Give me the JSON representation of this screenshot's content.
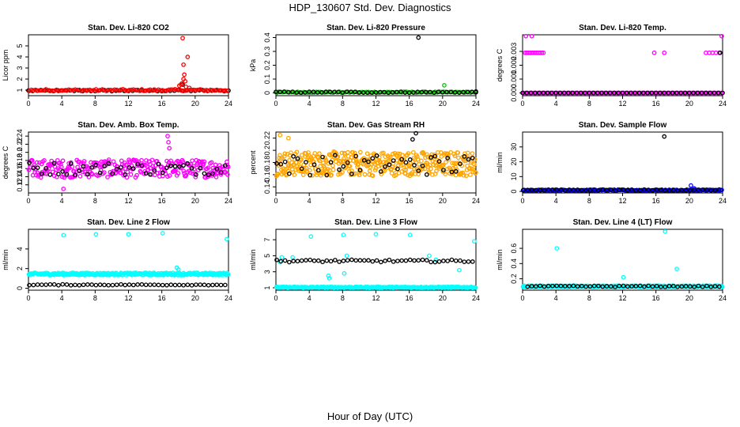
{
  "page": {
    "title": "HDP_130607  Std. Dev. Diagnostics",
    "xlabel": "Hour of Day (UTC)"
  },
  "colors": {
    "black": "#000000",
    "red": "#ff0000",
    "green": "#00cc00",
    "magenta": "#ff00ff",
    "orange": "#ffa500",
    "blue": "#0000ff",
    "cyan": "#00ffff"
  },
  "chart_data": [
    {
      "type": "scatter",
      "title": "Stan. Dev. Li-820 CO2",
      "ylabel": "Licor ppm",
      "xlim": [
        0,
        24
      ],
      "ylim": [
        0.5,
        6
      ],
      "xticks": [
        0,
        4,
        8,
        12,
        16,
        20,
        24
      ],
      "yticks": [
        1,
        2,
        3,
        4,
        5
      ],
      "series": [
        {
          "name": "black",
          "color": "#000000",
          "base": 0.95,
          "noise": 0.06,
          "step": 0.5,
          "offset": 0,
          "points": [
            [
              18.5,
              1.5
            ]
          ]
        },
        {
          "name": "red",
          "color": "#ff0000",
          "base": 1.0,
          "noise": 0.08,
          "step": 0.25,
          "offset": 0.1,
          "points": [
            [
              18.5,
              5.7
            ],
            [
              18.6,
              2.0
            ],
            [
              18.4,
              1.6
            ],
            [
              18.7,
              2.4
            ],
            [
              18.8,
              1.8
            ],
            [
              19.1,
              4.0
            ],
            [
              18.3,
              1.5
            ],
            [
              18.9,
              1.3
            ],
            [
              19.3,
              1.2
            ],
            [
              18.6,
              3.3
            ],
            [
              18.1,
              1.4
            ]
          ]
        }
      ]
    },
    {
      "type": "scatter",
      "title": "Stan. Dev. Li-820 Pressure",
      "ylabel": "kPa",
      "xlim": [
        0,
        24
      ],
      "ylim": [
        -0.02,
        0.42
      ],
      "xticks": [
        0,
        4,
        8,
        12,
        16,
        20,
        24
      ],
      "yticks": [
        0.0,
        0.1,
        0.2,
        0.3,
        0.4
      ],
      "series": [
        {
          "name": "green",
          "color": "#00cc00",
          "base": 0.005,
          "noise": 0.004,
          "step": 0.25,
          "offset": 0.1,
          "points": [
            [
              20.2,
              0.055
            ],
            [
              0.1,
              0.0
            ]
          ]
        },
        {
          "name": "black",
          "color": "#000000",
          "base": 0.005,
          "noise": 0.004,
          "step": 0.5,
          "offset": 0,
          "points": [
            [
              17.1,
              0.4
            ],
            [
              24,
              0.01
            ]
          ]
        }
      ]
    },
    {
      "type": "scatter",
      "title": "Stan. Dev. Li-820 Temp.",
      "ylabel": "degrees C",
      "xlim": [
        0,
        24
      ],
      "ylim": [
        -0.0002,
        0.0042
      ],
      "xticks": [
        0,
        4,
        8,
        12,
        16,
        20,
        24
      ],
      "yticks": [
        0.0,
        0.001,
        0.002,
        0.003
      ],
      "ytickfmt": 3,
      "series": [
        {
          "name": "magenta",
          "color": "#ff00ff",
          "base": 0.0,
          "noise": 0.0,
          "step": 0.25,
          "offset": 0.1,
          "points": [
            [
              0.3,
              0.0029
            ],
            [
              0.5,
              0.0029
            ],
            [
              0.7,
              0.0029
            ],
            [
              0.9,
              0.0029
            ],
            [
              1.1,
              0.0029
            ],
            [
              1.3,
              0.0029
            ],
            [
              1.5,
              0.0029
            ],
            [
              1.7,
              0.0029
            ],
            [
              1.9,
              0.0029
            ],
            [
              2.1,
              0.0029
            ],
            [
              2.3,
              0.0029
            ],
            [
              2.5,
              0.0029
            ],
            [
              0.4,
              0.0041
            ],
            [
              1.1,
              0.0041
            ],
            [
              15.8,
              0.0029
            ],
            [
              17.0,
              0.0029
            ],
            [
              22.0,
              0.0029
            ],
            [
              22.4,
              0.0029
            ],
            [
              22.8,
              0.0029
            ],
            [
              23.2,
              0.0029
            ],
            [
              23.6,
              0.0029
            ],
            [
              23.9,
              0.0041
            ]
          ]
        },
        {
          "name": "black",
          "color": "#000000",
          "base": 0.0,
          "noise": 0.0,
          "step": 0.5,
          "offset": 0,
          "points": [
            [
              23.7,
              0.0029
            ]
          ]
        }
      ]
    },
    {
      "type": "scatter",
      "title": "Stan. Dev. Amb. Box Temp.",
      "ylabel": "degrees C",
      "xlim": [
        0,
        24
      ],
      "ylim": [
        0.1,
        0.25
      ],
      "xticks": [
        0,
        4,
        8,
        12,
        16,
        20,
        24
      ],
      "yticks": [
        0.12,
        0.14,
        0.16,
        0.18,
        0.2,
        0.22,
        0.24
      ],
      "series": [
        {
          "name": "magenta",
          "color": "#ff00ff",
          "base": 0.16,
          "noise": 0.022,
          "step": 0.08,
          "offset": 0.05,
          "points": [
            [
              16.7,
              0.24
            ],
            [
              16.8,
              0.225
            ],
            [
              16.9,
              0.21
            ],
            [
              4.2,
              0.11
            ]
          ]
        },
        {
          "name": "black",
          "color": "#000000",
          "base": 0.16,
          "noise": 0.016,
          "step": 0.5,
          "offset": 0.1,
          "points": []
        }
      ]
    },
    {
      "type": "scatter",
      "title": "Stan. Dev. Gas Stream RH",
      "ylabel": "percent",
      "xlim": [
        0,
        24
      ],
      "ylim": [
        0.13,
        0.23
      ],
      "xticks": [
        0,
        4,
        8,
        12,
        16,
        20,
        24
      ],
      "yticks": [
        0.14,
        0.16,
        0.18,
        0.2,
        0.22
      ],
      "series": [
        {
          "name": "orange",
          "color": "#ffa500",
          "base": 0.178,
          "noise": 0.02,
          "step": 0.06,
          "offset": 0.05,
          "points": [
            [
              0.5,
              0.225
            ],
            [
              1.5,
              0.22
            ]
          ]
        },
        {
          "name": "black",
          "color": "#000000",
          "base": 0.176,
          "noise": 0.017,
          "step": 0.5,
          "offset": 0.1,
          "points": [
            [
              16.8,
              0.228
            ],
            [
              16.4,
              0.218
            ]
          ]
        }
      ]
    },
    {
      "type": "scatter",
      "title": "Stan. Dev. Sample Flow",
      "ylabel": "ml/min",
      "xlim": [
        0,
        24
      ],
      "ylim": [
        -1,
        40
      ],
      "xticks": [
        0,
        4,
        8,
        12,
        16,
        20,
        24
      ],
      "yticks": [
        0,
        10,
        20,
        30
      ],
      "series": [
        {
          "name": "blue",
          "color": "#0000ff",
          "base": 0.8,
          "noise": 0.4,
          "step": 0.15,
          "offset": 0.05,
          "points": [
            [
              20.2,
              4.0
            ],
            [
              20.6,
              2.0
            ]
          ]
        },
        {
          "name": "black",
          "color": "#000000",
          "base": 0.9,
          "noise": 0.4,
          "step": 0.5,
          "offset": 0.1,
          "points": [
            [
              17.0,
              37.0
            ]
          ]
        }
      ]
    },
    {
      "type": "scatter",
      "title": "Stan. Dev. Line 2 Flow",
      "ylabel": "ml/min",
      "xlim": [
        0,
        24
      ],
      "ylim": [
        -0.2,
        6.0
      ],
      "xticks": [
        0,
        4,
        8,
        12,
        16,
        20,
        24
      ],
      "yticks": [
        0,
        2,
        4
      ],
      "series": [
        {
          "name": "cyan",
          "color": "#00ffff",
          "base": 1.45,
          "noise": 0.12,
          "step": 0.08,
          "offset": 0.05,
          "points": [
            [
              4.2,
              5.4
            ],
            [
              8.1,
              5.5
            ],
            [
              12.0,
              5.5
            ],
            [
              16.1,
              5.6
            ],
            [
              23.8,
              5.0
            ],
            [
              17.8,
              2.1
            ],
            [
              18.0,
              1.9
            ]
          ]
        },
        {
          "name": "black",
          "color": "#000000",
          "base": 0.35,
          "noise": 0.05,
          "step": 0.5,
          "offset": 0.1,
          "points": []
        }
      ]
    },
    {
      "type": "scatter",
      "title": "Stan. Dev. Line 3 Flow",
      "ylabel": "ml/min",
      "xlim": [
        0,
        24
      ],
      "ylim": [
        0.7,
        8.3
      ],
      "xticks": [
        0,
        4,
        8,
        12,
        16,
        20,
        24
      ],
      "yticks": [
        1,
        3,
        5,
        7
      ],
      "series": [
        {
          "name": "cyan",
          "color": "#00ffff",
          "base": 1.05,
          "noise": 0.07,
          "step": 0.08,
          "offset": 0.05,
          "points": [
            [
              4.2,
              7.4
            ],
            [
              8.1,
              7.6
            ],
            [
              12.0,
              7.7
            ],
            [
              16.1,
              7.6
            ],
            [
              23.8,
              6.8
            ],
            [
              6.4,
              2.2
            ],
            [
              6.3,
              2.5
            ],
            [
              8.2,
              2.8
            ],
            [
              8.5,
              5.0
            ],
            [
              18.4,
              5.0
            ],
            [
              19.2,
              4.5
            ],
            [
              22.0,
              3.2
            ],
            [
              0.5,
              4.2
            ],
            [
              0.7,
              4.8
            ],
            [
              2.0,
              4.8
            ]
          ]
        },
        {
          "name": "black",
          "color": "#000000",
          "base": 4.35,
          "noise": 0.15,
          "step": 0.5,
          "offset": 0.1,
          "points": []
        }
      ]
    },
    {
      "type": "scatter",
      "title": "Stan. Dev. Line 4 (LT) Flow",
      "ylabel": "ml/min",
      "xlim": [
        0,
        24
      ],
      "ylim": [
        0.05,
        0.85
      ],
      "xticks": [
        0,
        4,
        8,
        12,
        16,
        20,
        24
      ],
      "yticks": [
        0.2,
        0.4,
        0.6
      ],
      "series": [
        {
          "name": "cyan",
          "color": "#00ffff",
          "base": 0.1,
          "noise": 0.01,
          "step": 0.08,
          "offset": 0.05,
          "points": [
            [
              4.1,
              0.6
            ],
            [
              17.1,
              0.82
            ],
            [
              18.5,
              0.33
            ],
            [
              12.1,
              0.22
            ]
          ]
        },
        {
          "name": "black",
          "color": "#000000",
          "base": 0.1,
          "noise": 0.008,
          "step": 0.5,
          "offset": 0.6,
          "points": []
        }
      ]
    }
  ]
}
